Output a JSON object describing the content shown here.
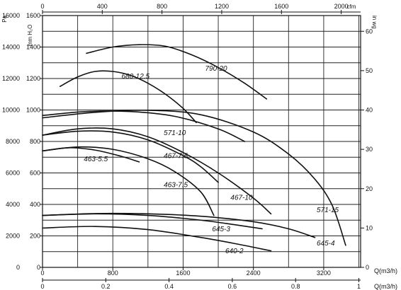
{
  "chart_data": {
    "type": "line",
    "title": "",
    "left_axis": {
      "unit_pa": "Pa",
      "unit_mm": "mm H₂O",
      "ticks_pa": [
        "16000",
        "14000",
        "12000",
        "10000",
        "8000",
        "6000",
        "4000",
        "2000",
        "0"
      ],
      "ticks_mm": [
        "1600",
        "1400",
        "1200",
        "1000",
        "800",
        "600",
        "400",
        "200",
        "0"
      ],
      "ylim_pa": [
        0,
        16000
      ]
    },
    "right_axis": {
      "unit": "in wg",
      "ticks": [
        "60",
        "50",
        "40",
        "30",
        "20",
        "10",
        "0"
      ],
      "ylim": [
        0,
        64
      ]
    },
    "top_axis": {
      "unit": "cfm",
      "ticks": [
        "0",
        "400",
        "800",
        "1200",
        "1600",
        "2000"
      ],
      "xlim": [
        0,
        2130
      ]
    },
    "bottom_axis_m3h": {
      "label": "Q(m3/h)",
      "ticks": [
        "0",
        "800",
        "1600",
        "2400",
        "3200"
      ],
      "xlim": [
        0,
        3620
      ]
    },
    "bottom_axis_m3s": {
      "label": "Q(m3/h)",
      "ticks": [
        "0",
        "0.2",
        "0.4",
        "0.6",
        "0.8",
        "1"
      ],
      "xlim": [
        0,
        1.0
      ]
    },
    "grid": true,
    "series": [
      {
        "name": "790-20",
        "x": [
          500,
          800,
          1100,
          1400,
          1700,
          2000,
          2300,
          2550
        ],
        "y": [
          13600,
          14000,
          14150,
          14050,
          13500,
          12700,
          11700,
          10700
        ]
      },
      {
        "name": "680-12.5",
        "x": [
          200,
          400,
          600,
          800,
          1000,
          1200,
          1400,
          1600,
          1750
        ],
        "y": [
          11500,
          12100,
          12450,
          12450,
          12200,
          11700,
          11000,
          10100,
          9200
        ]
      },
      {
        "name": "571-15",
        "x": [
          0,
          600,
          1200,
          1800,
          2400,
          2800,
          3100,
          3300,
          3450
        ],
        "y": [
          9500,
          9850,
          9980,
          9700,
          8600,
          7200,
          5600,
          3900,
          1400
        ]
      },
      {
        "name": "571-10",
        "x": [
          0,
          500,
          1000,
          1500,
          2000,
          2300
        ],
        "y": [
          9650,
          9900,
          9900,
          9600,
          8800,
          8000
        ]
      },
      {
        "name": "467-10",
        "x": [
          0,
          400,
          800,
          1200,
          1600,
          2000,
          2400,
          2600
        ],
        "y": [
          8400,
          8800,
          8800,
          8300,
          7300,
          6000,
          4400,
          3400
        ]
      },
      {
        "name": "467-7.5",
        "x": [
          0,
          400,
          800,
          1200,
          1600,
          1800,
          2000
        ],
        "y": [
          8400,
          8650,
          8600,
          8100,
          7100,
          6400,
          5400
        ]
      },
      {
        "name": "463-7.5",
        "x": [
          0,
          400,
          800,
          1200,
          1500,
          1800,
          1950
        ],
        "y": [
          7400,
          7650,
          7500,
          6900,
          6100,
          4800,
          3300
        ]
      },
      {
        "name": "463-5.5",
        "x": [
          0,
          300,
          600,
          900,
          1100
        ],
        "y": [
          7400,
          7600,
          7450,
          7050,
          6700
        ]
      },
      {
        "name": "645-4",
        "x": [
          0,
          600,
          1200,
          1800,
          2400,
          2800,
          3100
        ],
        "y": [
          3300,
          3420,
          3400,
          3250,
          2900,
          2450,
          1900
        ]
      },
      {
        "name": "645-3",
        "x": [
          0,
          600,
          1200,
          1800,
          2200,
          2500
        ],
        "y": [
          3300,
          3400,
          3300,
          3000,
          2700,
          2450
        ]
      },
      {
        "name": "640-2",
        "x": [
          0,
          600,
          1200,
          1800,
          2200,
          2600
        ],
        "y": [
          2500,
          2600,
          2400,
          1900,
          1500,
          1050
        ]
      }
    ]
  }
}
